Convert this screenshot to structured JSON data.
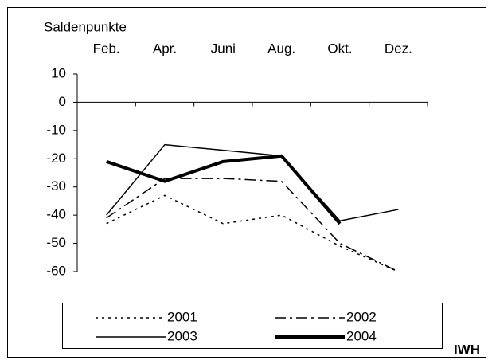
{
  "chart_data": {
    "type": "line",
    "y_label": "Saldenpunkte",
    "source": "IWH",
    "categories": [
      "Feb.",
      "Apr.",
      "Juni",
      "Aug.",
      "Okt.",
      "Dez."
    ],
    "ylim": [
      -60,
      10
    ],
    "yticks": [
      10,
      0,
      -10,
      -20,
      -30,
      -40,
      -50,
      -60
    ],
    "series": [
      {
        "name": "2001",
        "color": "#000000",
        "line_style": "dotted",
        "values": [
          -43,
          -33,
          -43,
          -40,
          -51,
          -60
        ]
      },
      {
        "name": "2002",
        "color": "#000000",
        "line_style": "dashdot",
        "values": [
          -41,
          -27,
          -27,
          -28,
          -50,
          -60
        ]
      },
      {
        "name": "2003",
        "color": "#000000",
        "line_style": "solid",
        "values": [
          -40,
          -15,
          -17,
          -19,
          -42,
          -38
        ]
      },
      {
        "name": "2004",
        "color": "#000000",
        "line_style": "thick",
        "values": [
          -21,
          -28,
          -21,
          -19,
          -43,
          null
        ]
      }
    ]
  }
}
